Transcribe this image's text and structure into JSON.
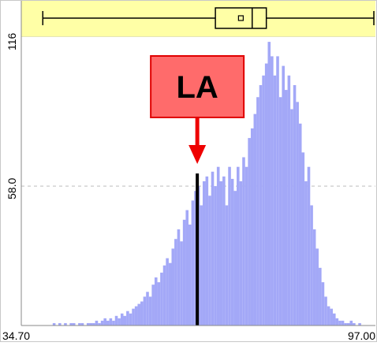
{
  "chart_data": {
    "type": "histogram",
    "x_range": [
      34.7,
      97.0
    ],
    "y_range": [
      0,
      116
    ],
    "x_tick_labels": [
      "34.70",
      "97.00"
    ],
    "y_tick_labels": [
      "116",
      "58.0"
    ],
    "grid": "dashed line at y=58.0",
    "bar_color": "#a3a8f7",
    "bins": [
      {
        "x": 35.0,
        "y": 0
      },
      {
        "x": 35.5,
        "y": 0
      },
      {
        "x": 36.0,
        "y": 0
      },
      {
        "x": 36.5,
        "y": 0
      },
      {
        "x": 37.0,
        "y": 0
      },
      {
        "x": 37.5,
        "y": 0
      },
      {
        "x": 38.0,
        "y": 0
      },
      {
        "x": 38.5,
        "y": 0
      },
      {
        "x": 39.0,
        "y": 0
      },
      {
        "x": 39.5,
        "y": 0
      },
      {
        "x": 40.0,
        "y": 0
      },
      {
        "x": 40.5,
        "y": 1
      },
      {
        "x": 41.0,
        "y": 0
      },
      {
        "x": 41.5,
        "y": 1
      },
      {
        "x": 42.0,
        "y": 0
      },
      {
        "x": 42.5,
        "y": 1
      },
      {
        "x": 43.0,
        "y": 0
      },
      {
        "x": 43.5,
        "y": 1
      },
      {
        "x": 44.0,
        "y": 1
      },
      {
        "x": 44.5,
        "y": 0
      },
      {
        "x": 45.0,
        "y": 1
      },
      {
        "x": 45.5,
        "y": 1
      },
      {
        "x": 46.0,
        "y": 0
      },
      {
        "x": 46.5,
        "y": 1
      },
      {
        "x": 47.0,
        "y": 1
      },
      {
        "x": 47.5,
        "y": 1
      },
      {
        "x": 48.0,
        "y": 2
      },
      {
        "x": 48.5,
        "y": 1
      },
      {
        "x": 49.0,
        "y": 2
      },
      {
        "x": 49.5,
        "y": 3
      },
      {
        "x": 50.0,
        "y": 2
      },
      {
        "x": 50.5,
        "y": 3
      },
      {
        "x": 51.0,
        "y": 2
      },
      {
        "x": 51.5,
        "y": 4
      },
      {
        "x": 52.0,
        "y": 3
      },
      {
        "x": 52.5,
        "y": 5
      },
      {
        "x": 53.0,
        "y": 4
      },
      {
        "x": 53.5,
        "y": 6
      },
      {
        "x": 54.0,
        "y": 5
      },
      {
        "x": 54.5,
        "y": 7
      },
      {
        "x": 55.0,
        "y": 8
      },
      {
        "x": 55.5,
        "y": 9
      },
      {
        "x": 56.0,
        "y": 10
      },
      {
        "x": 56.5,
        "y": 12
      },
      {
        "x": 57.0,
        "y": 14
      },
      {
        "x": 57.5,
        "y": 12
      },
      {
        "x": 58.0,
        "y": 17
      },
      {
        "x": 58.5,
        "y": 20
      },
      {
        "x": 59.0,
        "y": 18
      },
      {
        "x": 59.5,
        "y": 22
      },
      {
        "x": 60.0,
        "y": 25
      },
      {
        "x": 60.5,
        "y": 28
      },
      {
        "x": 61.0,
        "y": 26
      },
      {
        "x": 61.5,
        "y": 32
      },
      {
        "x": 62.0,
        "y": 36
      },
      {
        "x": 62.5,
        "y": 40
      },
      {
        "x": 63.0,
        "y": 35
      },
      {
        "x": 63.5,
        "y": 44
      },
      {
        "x": 64.0,
        "y": 48
      },
      {
        "x": 64.5,
        "y": 42
      },
      {
        "x": 65.0,
        "y": 52
      },
      {
        "x": 65.5,
        "y": 56
      },
      {
        "x": 66.0,
        "y": 58
      },
      {
        "x": 66.5,
        "y": 50
      },
      {
        "x": 67.0,
        "y": 60
      },
      {
        "x": 67.5,
        "y": 62
      },
      {
        "x": 68.0,
        "y": 54
      },
      {
        "x": 68.5,
        "y": 64
      },
      {
        "x": 69.0,
        "y": 58
      },
      {
        "x": 69.5,
        "y": 66
      },
      {
        "x": 70.0,
        "y": 60
      },
      {
        "x": 70.5,
        "y": 62
      },
      {
        "x": 71.0,
        "y": 50
      },
      {
        "x": 71.5,
        "y": 66
      },
      {
        "x": 72.0,
        "y": 61
      },
      {
        "x": 72.5,
        "y": 56
      },
      {
        "x": 73.0,
        "y": 66
      },
      {
        "x": 73.5,
        "y": 60
      },
      {
        "x": 74.0,
        "y": 70
      },
      {
        "x": 74.5,
        "y": 66
      },
      {
        "x": 75.0,
        "y": 78
      },
      {
        "x": 75.5,
        "y": 82
      },
      {
        "x": 76.0,
        "y": 88
      },
      {
        "x": 76.5,
        "y": 95
      },
      {
        "x": 77.0,
        "y": 100
      },
      {
        "x": 77.5,
        "y": 104
      },
      {
        "x": 78.0,
        "y": 109
      },
      {
        "x": 78.5,
        "y": 118
      },
      {
        "x": 79.0,
        "y": 112
      },
      {
        "x": 79.5,
        "y": 104
      },
      {
        "x": 80.0,
        "y": 112
      },
      {
        "x": 80.5,
        "y": 95
      },
      {
        "x": 81.0,
        "y": 108
      },
      {
        "x": 81.5,
        "y": 98
      },
      {
        "x": 82.0,
        "y": 104
      },
      {
        "x": 82.5,
        "y": 90
      },
      {
        "x": 83.0,
        "y": 100
      },
      {
        "x": 83.5,
        "y": 93
      },
      {
        "x": 84.0,
        "y": 84
      },
      {
        "x": 84.5,
        "y": 72
      },
      {
        "x": 85.0,
        "y": 60
      },
      {
        "x": 85.5,
        "y": 66
      },
      {
        "x": 86.0,
        "y": 50
      },
      {
        "x": 86.5,
        "y": 40
      },
      {
        "x": 87.0,
        "y": 32
      },
      {
        "x": 87.5,
        "y": 24
      },
      {
        "x": 88.0,
        "y": 18
      },
      {
        "x": 88.5,
        "y": 12
      },
      {
        "x": 89.0,
        "y": 8
      },
      {
        "x": 89.5,
        "y": 7
      },
      {
        "x": 90.0,
        "y": 5
      },
      {
        "x": 90.5,
        "y": 3
      },
      {
        "x": 91.0,
        "y": 2
      },
      {
        "x": 91.5,
        "y": 2
      },
      {
        "x": 92.0,
        "y": 1
      },
      {
        "x": 92.5,
        "y": 1
      },
      {
        "x": 93.0,
        "y": 2
      },
      {
        "x": 93.5,
        "y": 1
      },
      {
        "x": 94.0,
        "y": 0
      },
      {
        "x": 94.5,
        "y": 1
      },
      {
        "x": 95.0,
        "y": 0
      },
      {
        "x": 95.5,
        "y": 0
      },
      {
        "x": 96.0,
        "y": 0
      },
      {
        "x": 96.5,
        "y": 0
      }
    ],
    "boxplot": {
      "min": 38.5,
      "q1": 69.0,
      "median": 75.5,
      "mean": 73.5,
      "q3": 78.0,
      "max": 97.0
    },
    "marker": {
      "label": "LA",
      "x": 65.8,
      "y": 58,
      "label_fill": "#ff6b6b",
      "label_border": "#e00000",
      "arrow_color": "#ee0000"
    },
    "band_color": "#ffffa6"
  }
}
